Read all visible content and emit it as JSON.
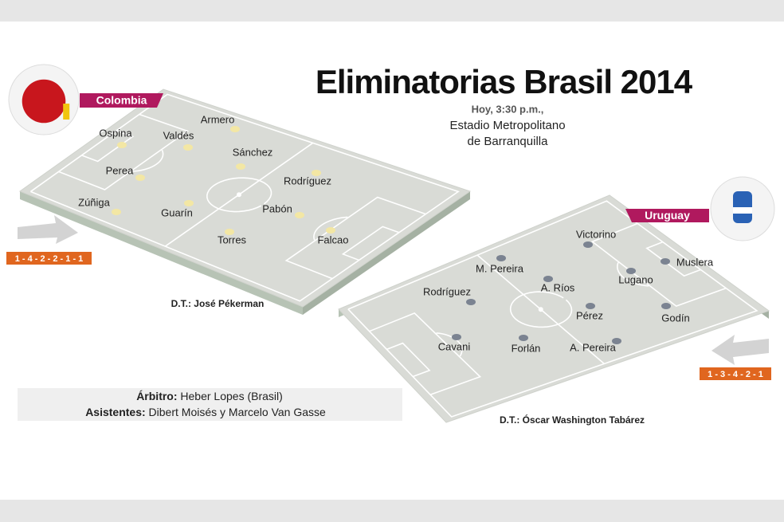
{
  "title": "Eliminatorias Brasil 2014",
  "time": "Hoy, 3:30 p.m.,",
  "venue": [
    "Estadio Metropolitano",
    "de Barranquilla"
  ],
  "teams": [
    {
      "name": "Colombia",
      "formation": "1 - 4 - 2 - 2 - 1 - 1",
      "coach": "D.T.: José Pékerman",
      "players": [
        "Ospina",
        "Armero",
        "Valdés",
        "Sánchez",
        "Perea",
        "Rodríguez",
        "Zúñiga",
        "Guarín",
        "Pabón",
        "Torres",
        "Falcao"
      ]
    },
    {
      "name": "Uruguay",
      "formation": "1 - 3 - 4 - 2 - 1",
      "coach": "D.T.: Óscar Washington Tabárez",
      "players": [
        "Victorino",
        "M. Pereira",
        "Muslera",
        "A. Ríos",
        "Lugano",
        "Rodríguez",
        "Pérez",
        "Godín",
        "Cavani",
        "Forlán",
        "A. Pereira"
      ]
    }
  ],
  "officials": {
    "referee": {
      "label": "Árbitro:",
      "value": "Heber Lopes (Brasil)"
    },
    "assistants": {
      "label": "Asistentes:",
      "value": "Dibert Moisés y Marcelo Van Gasse"
    }
  }
}
